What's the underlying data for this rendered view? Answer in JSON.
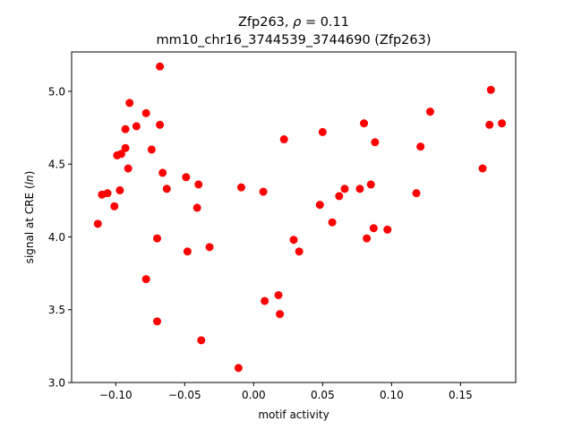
{
  "chart_data": {
    "type": "scatter",
    "title_line1": "Zfp263, ρ = 0.11",
    "title_line2": "mm10_chr16_3744539_3744690 (Zfp263)",
    "xlabel": "motif activity",
    "ylabel": "signal at CRE (ln)",
    "xlim": [
      -0.132,
      0.19
    ],
    "ylim": [
      3.0,
      5.27
    ],
    "xticks": [
      -0.1,
      -0.05,
      0.0,
      0.05,
      0.1,
      0.15
    ],
    "xtick_labels": [
      "−0.10",
      "−0.05",
      "0.00",
      "0.05",
      "0.10",
      "0.15"
    ],
    "yticks": [
      3.0,
      3.5,
      4.0,
      4.5,
      5.0
    ],
    "ytick_labels": [
      "3.0",
      "3.5",
      "4.0",
      "4.5",
      "5.0"
    ],
    "marker_color": "#ff0000",
    "grid": false,
    "points": [
      {
        "x": -0.113,
        "y": 4.09
      },
      {
        "x": -0.11,
        "y": 4.29
      },
      {
        "x": -0.106,
        "y": 4.3
      },
      {
        "x": -0.101,
        "y": 4.21
      },
      {
        "x": -0.099,
        "y": 4.56
      },
      {
        "x": -0.096,
        "y": 4.57
      },
      {
        "x": -0.097,
        "y": 4.32
      },
      {
        "x": -0.093,
        "y": 4.61
      },
      {
        "x": -0.093,
        "y": 4.74
      },
      {
        "x": -0.091,
        "y": 4.47
      },
      {
        "x": -0.09,
        "y": 4.92
      },
      {
        "x": -0.085,
        "y": 4.76
      },
      {
        "x": -0.078,
        "y": 4.85
      },
      {
        "x": -0.078,
        "y": 3.71
      },
      {
        "x": -0.074,
        "y": 4.6
      },
      {
        "x": -0.07,
        "y": 3.99
      },
      {
        "x": -0.07,
        "y": 3.42
      },
      {
        "x": -0.068,
        "y": 5.17
      },
      {
        "x": -0.068,
        "y": 4.77
      },
      {
        "x": -0.066,
        "y": 4.44
      },
      {
        "x": -0.063,
        "y": 4.33
      },
      {
        "x": -0.049,
        "y": 4.41
      },
      {
        "x": -0.048,
        "y": 3.9
      },
      {
        "x": -0.041,
        "y": 4.2
      },
      {
        "x": -0.04,
        "y": 4.36
      },
      {
        "x": -0.038,
        "y": 3.29
      },
      {
        "x": -0.032,
        "y": 3.93
      },
      {
        "x": -0.011,
        "y": 3.1
      },
      {
        "x": -0.009,
        "y": 4.34
      },
      {
        "x": 0.007,
        "y": 4.31
      },
      {
        "x": 0.008,
        "y": 3.56
      },
      {
        "x": 0.018,
        "y": 3.6
      },
      {
        "x": 0.019,
        "y": 3.47
      },
      {
        "x": 0.022,
        "y": 4.67
      },
      {
        "x": 0.029,
        "y": 3.98
      },
      {
        "x": 0.033,
        "y": 3.9
      },
      {
        "x": 0.048,
        "y": 4.22
      },
      {
        "x": 0.05,
        "y": 4.72
      },
      {
        "x": 0.057,
        "y": 4.1
      },
      {
        "x": 0.062,
        "y": 4.28
      },
      {
        "x": 0.066,
        "y": 4.33
      },
      {
        "x": 0.077,
        "y": 4.33
      },
      {
        "x": 0.08,
        "y": 4.78
      },
      {
        "x": 0.082,
        "y": 3.99
      },
      {
        "x": 0.085,
        "y": 4.36
      },
      {
        "x": 0.087,
        "y": 4.06
      },
      {
        "x": 0.088,
        "y": 4.65
      },
      {
        "x": 0.097,
        "y": 4.05
      },
      {
        "x": 0.118,
        "y": 4.3
      },
      {
        "x": 0.121,
        "y": 4.62
      },
      {
        "x": 0.128,
        "y": 4.86
      },
      {
        "x": 0.166,
        "y": 4.47
      },
      {
        "x": 0.171,
        "y": 4.77
      },
      {
        "x": 0.172,
        "y": 5.01
      },
      {
        "x": 0.18,
        "y": 4.78
      }
    ]
  }
}
